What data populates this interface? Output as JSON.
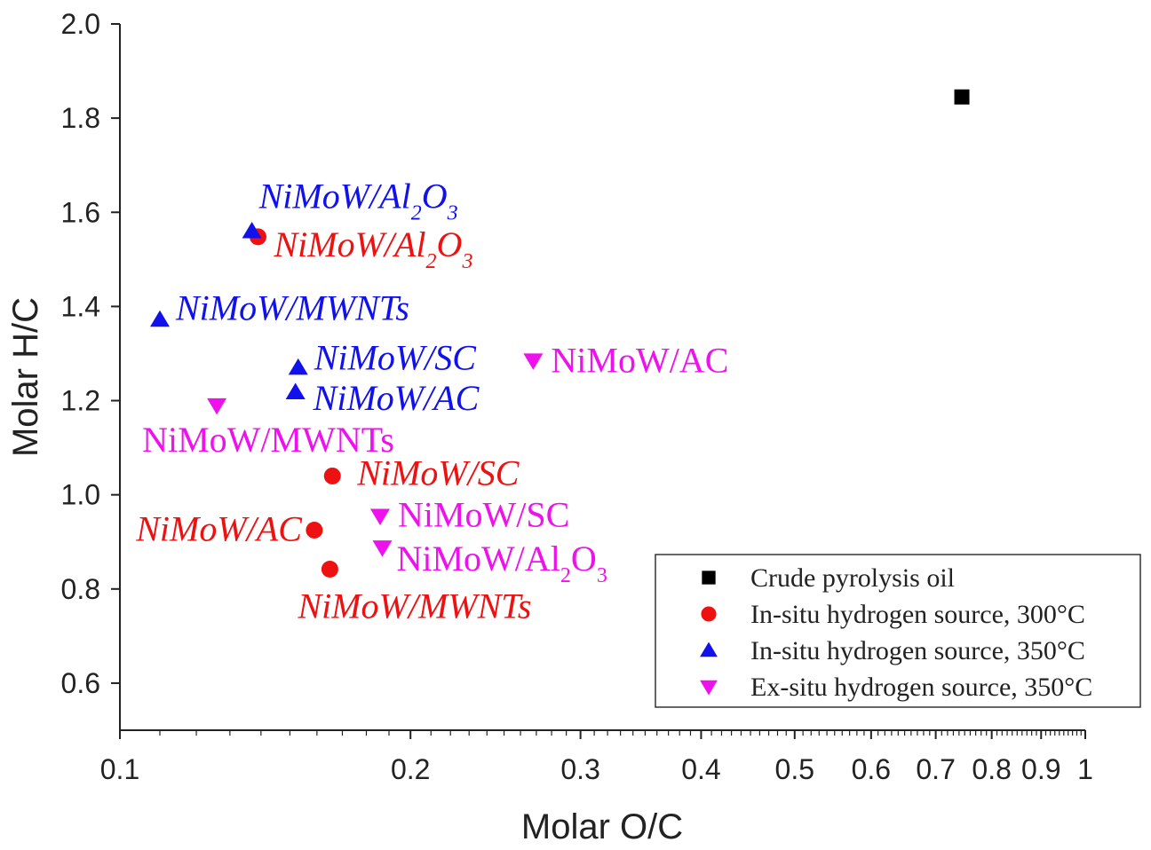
{
  "chart_data": {
    "type": "scatter",
    "xlabel": "Molar O/C",
    "ylabel": "Molar H/C",
    "xscale": "log",
    "xlim": [
      0.1,
      1
    ],
    "ylim": [
      0.5,
      2.0
    ],
    "x_ticks": [
      {
        "value": 0.1,
        "label": "0.1"
      },
      {
        "value": 0.2,
        "label": "0.2"
      },
      {
        "value": 0.3,
        "label": "0.3"
      },
      {
        "value": 0.4,
        "label": "0.4"
      },
      {
        "value": 0.5,
        "label": "0.5"
      },
      {
        "value": 0.6,
        "label": "0.6"
      },
      {
        "value": 0.7,
        "label": "0.7"
      },
      {
        "value": 0.8,
        "label": "0.8"
      },
      {
        "value": 0.9,
        "label": "0.9"
      },
      {
        "value": 1.0,
        "label": "1"
      }
    ],
    "y_ticks": [
      {
        "value": 0.6,
        "label": "0.6"
      },
      {
        "value": 0.8,
        "label": "0.8"
      },
      {
        "value": 1.0,
        "label": "1.0"
      },
      {
        "value": 1.2,
        "label": "1.2"
      },
      {
        "value": 1.4,
        "label": "1.4"
      },
      {
        "value": 1.6,
        "label": "1.6"
      },
      {
        "value": 1.8,
        "label": "1.8"
      },
      {
        "value": 2.0,
        "label": "2.0"
      }
    ],
    "legend": {
      "position": "bottom-right"
    },
    "series": [
      {
        "name": "Crude pyrolysis oil",
        "marker": "square",
        "color": "#000000",
        "italic": false,
        "points": [
          {
            "x": 0.745,
            "y": 1.845,
            "label": ""
          }
        ]
      },
      {
        "name": "In-situ hydrogen source, 300°C",
        "marker": "circle",
        "color": "#ee1111",
        "italic": true,
        "points": [
          {
            "x": 0.139,
            "y": 1.548,
            "label": "NiMoW/Al",
            "sub1": "2",
            "mid": "O",
            "sub2": "3"
          },
          {
            "x": 0.166,
            "y": 1.04,
            "label": "NiMoW/SC"
          },
          {
            "x": 0.159,
            "y": 0.925,
            "label": "NiMoW/AC"
          },
          {
            "x": 0.165,
            "y": 0.842,
            "label": "NiMoW/MWNTs"
          }
        ]
      },
      {
        "name": "In-situ hydrogen source, 350°C",
        "marker": "triangle-up",
        "color": "#1111ee",
        "italic": true,
        "points": [
          {
            "x": 0.137,
            "y": 1.56,
            "label": "NiMoW/Al",
            "sub1": "2",
            "mid": "O",
            "sub2": "3"
          },
          {
            "x": 0.11,
            "y": 1.372,
            "label": "NiMoW/MWNTs"
          },
          {
            "x": 0.153,
            "y": 1.27,
            "label": "NiMoW/SC"
          },
          {
            "x": 0.152,
            "y": 1.218,
            "label": "NiMoW/AC"
          }
        ]
      },
      {
        "name": "Ex-situ hydrogen source, 350°C",
        "marker": "triangle-down",
        "color": "#ee11ee",
        "italic": false,
        "points": [
          {
            "x": 0.268,
            "y": 1.285,
            "label": "NiMoW/AC"
          },
          {
            "x": 0.126,
            "y": 1.19,
            "label": "NiMoW/MWNTs"
          },
          {
            "x": 0.186,
            "y": 0.955,
            "label": "NiMoW/SC"
          },
          {
            "x": 0.187,
            "y": 0.888,
            "label": "NiMoW/Al",
            "sub1": "2",
            "mid": "O",
            "sub2": "3"
          }
        ]
      }
    ]
  }
}
